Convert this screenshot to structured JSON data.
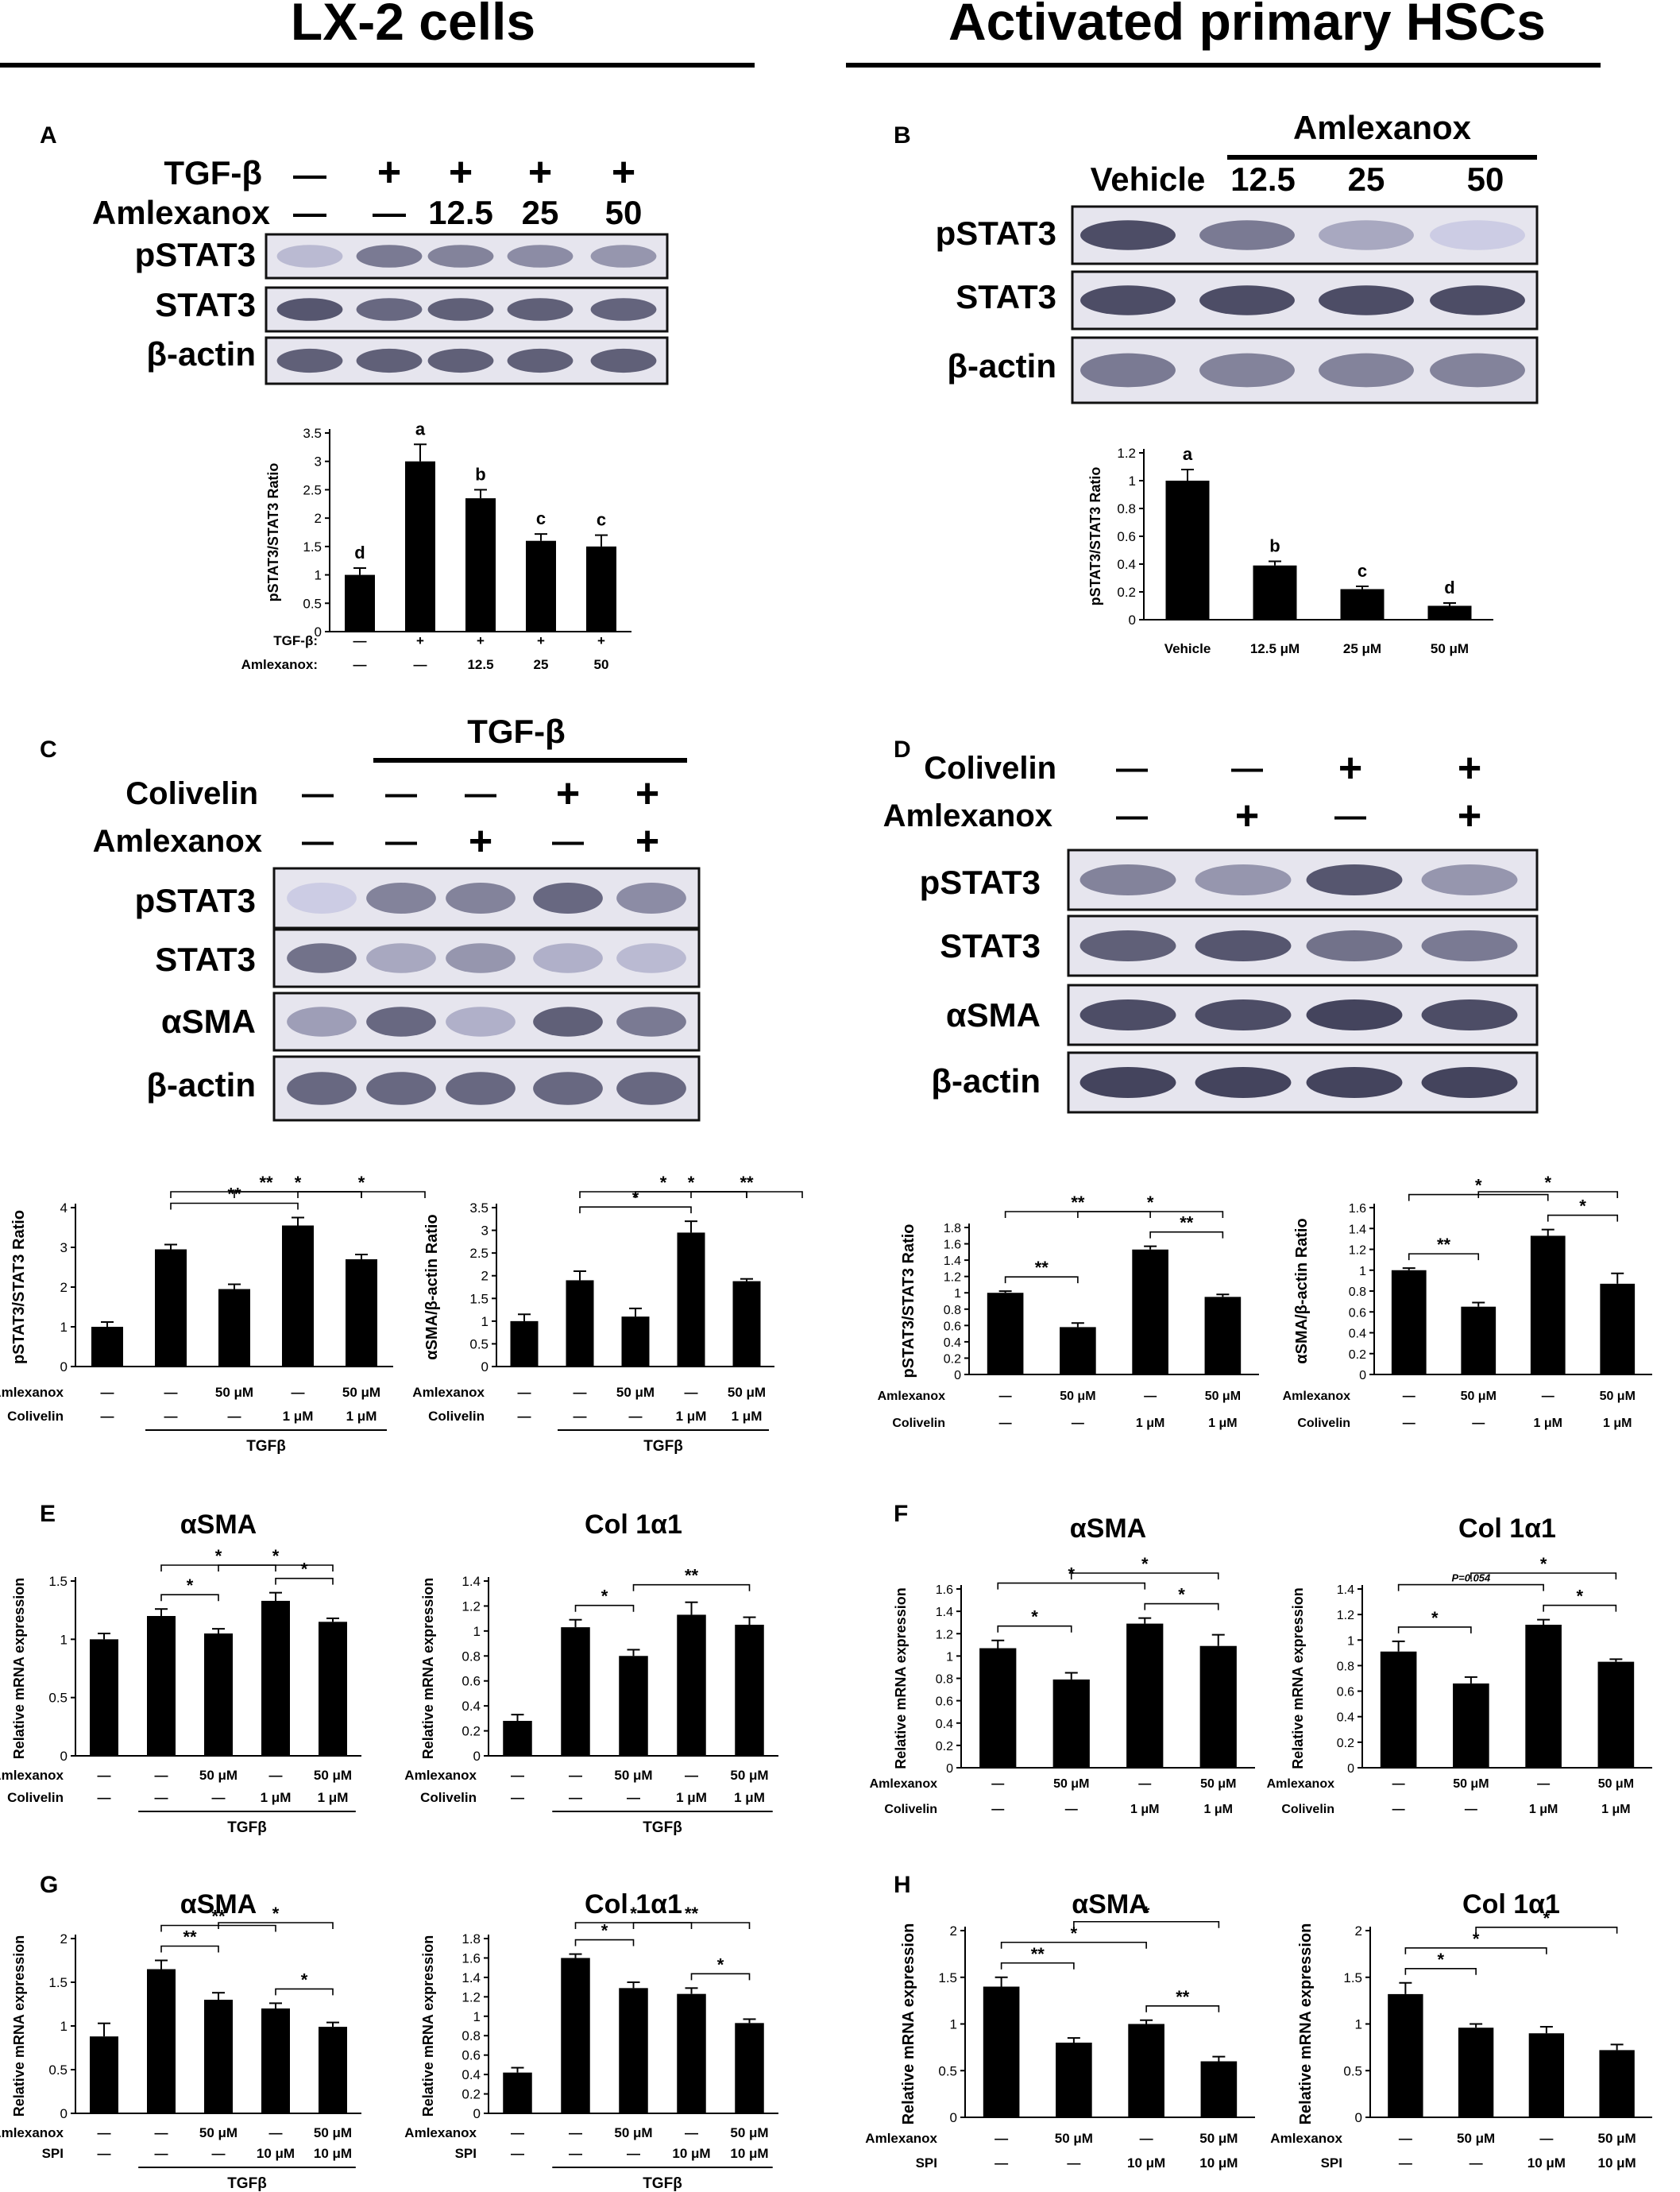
{
  "headers": {
    "left": "LX-2 cells",
    "right": "Activated primary HSCs"
  },
  "panel_labels": [
    "A",
    "B",
    "C",
    "D",
    "E",
    "F",
    "G",
    "H"
  ],
  "blot_labels": {
    "tgfb": "TGF-β",
    "amlexanox": "Amlexanox",
    "colivelin": "Colivelin",
    "pstat3": "pSTAT3",
    "stat3": "STAT3",
    "asma": "αSMA",
    "bactin": "β-actin",
    "vehicle": "Vehicle",
    "plus": "+",
    "minus": "—"
  },
  "blots": {
    "A": {
      "tgfb": [
        "—",
        "+",
        "+",
        "+",
        "+"
      ],
      "amlexanox": [
        "—",
        "—",
        "12.5",
        "25",
        "50"
      ],
      "bands": {
        "pstat3": [
          0.25,
          0.6,
          0.55,
          0.5,
          0.45
        ],
        "stat3": [
          0.8,
          0.7,
          0.75,
          0.75,
          0.72
        ],
        "bactin": [
          0.75,
          0.75,
          0.75,
          0.75,
          0.75
        ]
      }
    },
    "B": {
      "doses": [
        "12.5",
        "25",
        "50"
      ],
      "bands": {
        "pstat3": [
          0.85,
          0.6,
          0.35,
          0.15
        ],
        "stat3": [
          0.85,
          0.85,
          0.85,
          0.85
        ],
        "bactin": [
          0.6,
          0.55,
          0.55,
          0.55
        ]
      }
    },
    "C": {
      "colivelin": [
        "—",
        "—",
        "—",
        "+",
        "+"
      ],
      "amlexanox": [
        "—",
        "—",
        "+",
        "—",
        "+"
      ],
      "bands": {
        "pstat3": [
          0.15,
          0.55,
          0.55,
          0.7,
          0.5
        ],
        "stat3": [
          0.65,
          0.35,
          0.45,
          0.3,
          0.25
        ],
        "asma": [
          0.4,
          0.7,
          0.3,
          0.75,
          0.6
        ],
        "bactin": [
          0.7,
          0.7,
          0.7,
          0.7,
          0.7
        ]
      }
    },
    "D": {
      "colivelin": [
        "—",
        "—",
        "+",
        "+"
      ],
      "amlexanox": [
        "—",
        "+",
        "—",
        "+"
      ],
      "bands": {
        "pstat3": [
          0.55,
          0.45,
          0.8,
          0.45
        ],
        "stat3": [
          0.75,
          0.8,
          0.65,
          0.6
        ],
        "asma": [
          0.85,
          0.85,
          0.9,
          0.85
        ],
        "bactin": [
          0.9,
          0.9,
          0.9,
          0.9
        ]
      }
    }
  },
  "chart_data": [
    {
      "id": "A-chart",
      "type": "bar",
      "ylabel": "pSTAT3/STAT3 Ratio",
      "ylim": [
        0,
        3.5
      ],
      "yticks": [
        "0",
        "0.5",
        "1",
        "1.5",
        "2",
        "2.5",
        "3",
        "3.5"
      ],
      "values": [
        1.0,
        3.0,
        2.35,
        1.6,
        1.5
      ],
      "errors": [
        0.12,
        0.3,
        0.15,
        0.12,
        0.2
      ],
      "letters": [
        "d",
        "a",
        "b",
        "c",
        "c"
      ],
      "treat_rows": [
        {
          "label": "TGF-β:",
          "values": [
            "—",
            "+",
            "+",
            "+",
            "+"
          ]
        },
        {
          "label": "Amlexanox:",
          "values": [
            "—",
            "—",
            "12.5",
            "25",
            "50"
          ]
        }
      ]
    },
    {
      "id": "B-chart",
      "type": "bar",
      "ylabel": "pSTAT3/STAT3 Ratio",
      "ylim": [
        0,
        1.2
      ],
      "yticks": [
        "0",
        "0.2",
        "0.4",
        "0.6",
        "0.8",
        "1",
        "1.2"
      ],
      "categories": [
        "Vehicle",
        "12.5 μM",
        "25 μM",
        "50 μM"
      ],
      "values": [
        1.0,
        0.39,
        0.22,
        0.1
      ],
      "errors": [
        0.08,
        0.03,
        0.02,
        0.02
      ],
      "letters": [
        "a",
        "b",
        "c",
        "d"
      ]
    },
    {
      "id": "C1-chart",
      "type": "bar",
      "ylabel": "pSTAT3/STAT3 Ratio",
      "ylim": [
        0,
        4
      ],
      "yticks": [
        "0",
        "1",
        "2",
        "3",
        "4"
      ],
      "values": [
        1.0,
        2.95,
        1.95,
        3.55,
        2.7
      ],
      "errors": [
        0.12,
        0.12,
        0.12,
        0.2,
        0.12
      ],
      "sig": [
        [
          "1",
          "3",
          "**"
        ],
        [
          "1",
          "4",
          "**"
        ],
        [
          "2",
          "4",
          "*"
        ],
        [
          "3",
          "5",
          "*"
        ]
      ],
      "treat_rows": [
        {
          "label": "Amlexanox",
          "values": [
            "—",
            "—",
            "50 μM",
            "—",
            "50 μM"
          ]
        },
        {
          "label": "Colivelin",
          "values": [
            "—",
            "—",
            "—",
            "1 μM",
            "1 μM"
          ]
        }
      ],
      "underline": "TGFβ"
    },
    {
      "id": "C2-chart",
      "type": "bar",
      "ylabel": "αSMA/β-actin Ratio",
      "ylim": [
        0,
        3.5
      ],
      "yticks": [
        "0",
        "0.5",
        "1",
        "1.5",
        "2",
        "2.5",
        "3",
        "3.5"
      ],
      "values": [
        1.0,
        1.9,
        1.1,
        2.95,
        1.88
      ],
      "errors": [
        0.15,
        0.2,
        0.18,
        0.25,
        0.05
      ],
      "sig": [
        [
          "1",
          "3",
          "*"
        ],
        [
          "1",
          "4",
          "*"
        ],
        [
          "2",
          "4",
          "*"
        ],
        [
          "3",
          "5",
          "**"
        ]
      ],
      "treat_rows": [
        {
          "label": "Amlexanox",
          "values": [
            "—",
            "—",
            "50 μM",
            "—",
            "50 μM"
          ]
        },
        {
          "label": "Colivelin",
          "values": [
            "—",
            "—",
            "—",
            "1 μM",
            "1 μM"
          ]
        }
      ],
      "underline": "TGFβ"
    },
    {
      "id": "D1-chart",
      "type": "bar",
      "ylabel": "pSTAT3/STAT3 Ratio",
      "ylim": [
        0,
        1.8
      ],
      "yticks": [
        "0",
        "0.2",
        "0.4",
        "0.6",
        "0.8",
        "1",
        "1.2",
        "1.4",
        "1.6",
        "1.8"
      ],
      "values": [
        1.0,
        0.58,
        1.53,
        0.95
      ],
      "errors": [
        0.02,
        0.05,
        0.04,
        0.03
      ],
      "sig": [
        [
          "0",
          "1",
          "**"
        ],
        [
          "0",
          "2",
          "**"
        ],
        [
          "1",
          "3",
          "*"
        ],
        [
          "2",
          "3",
          "**"
        ]
      ],
      "treat_rows": [
        {
          "label": "Amlexanox",
          "values": [
            "—",
            "50 μM",
            "—",
            "50 μM"
          ]
        },
        {
          "label": "Colivelin",
          "values": [
            "—",
            "—",
            "1 μM",
            "1 μM"
          ]
        }
      ]
    },
    {
      "id": "D2-chart",
      "type": "bar",
      "ylabel": "αSMA/β-actin Ratio",
      "ylim": [
        0,
        1.6
      ],
      "yticks": [
        "0",
        "0.2",
        "0.4",
        "0.6",
        "0.8",
        "1",
        "1.2",
        "1.4",
        "1.6"
      ],
      "values": [
        1.0,
        0.65,
        1.33,
        0.87
      ],
      "errors": [
        0.02,
        0.04,
        0.06,
        0.1
      ],
      "sig": [
        [
          "0",
          "1",
          "**"
        ],
        [
          "0",
          "2",
          "*"
        ],
        [
          "1",
          "3",
          "*"
        ],
        [
          "2",
          "3",
          "*"
        ]
      ],
      "treat_rows": [
        {
          "label": "Amlexanox",
          "values": [
            "—",
            "50 μM",
            "—",
            "50 μM"
          ]
        },
        {
          "label": "Colivelin",
          "values": [
            "—",
            "—",
            "1 μM",
            "1 μM"
          ]
        }
      ]
    },
    {
      "id": "E1-chart",
      "type": "bar",
      "title": "αSMA",
      "ylabel": "Relative mRNA expression",
      "ylim": [
        0,
        1.5
      ],
      "yticks": [
        "0",
        "0.5",
        "1",
        "1.5"
      ],
      "values": [
        1.0,
        1.2,
        1.05,
        1.33,
        1.15
      ],
      "errors": [
        0.05,
        0.06,
        0.04,
        0.07,
        0.03
      ],
      "sig": [
        [
          "1",
          "2",
          "*"
        ],
        [
          "1",
          "3",
          "*"
        ],
        [
          "2",
          "4",
          "*"
        ],
        [
          "3",
          "4",
          "*"
        ]
      ],
      "treat_rows": [
        {
          "label": "Amlexanox",
          "values": [
            "—",
            "—",
            "50 μM",
            "—",
            "50 μM"
          ]
        },
        {
          "label": "Colivelin",
          "values": [
            "—",
            "—",
            "—",
            "1 μM",
            "1 μM"
          ]
        }
      ],
      "underline": "TGFβ"
    },
    {
      "id": "E2-chart",
      "type": "bar",
      "title": "Col 1α1",
      "ylabel": "Relative mRNA expression",
      "ylim": [
        0,
        1.4
      ],
      "yticks": [
        "0",
        "0.2",
        "0.4",
        "0.6",
        "0.8",
        "1",
        "1.2",
        "1.4"
      ],
      "values": [
        0.28,
        1.03,
        0.8,
        1.13,
        1.05
      ],
      "errors": [
        0.05,
        0.06,
        0.05,
        0.1,
        0.06
      ],
      "sig": [
        [
          "1",
          "2",
          "*"
        ],
        [
          "2",
          "4",
          "**"
        ]
      ],
      "treat_rows": [
        {
          "label": "Amlexanox",
          "values": [
            "—",
            "—",
            "50 μM",
            "—",
            "50 μM"
          ]
        },
        {
          "label": "Colivelin",
          "values": [
            "—",
            "—",
            "—",
            "1 μM",
            "1 μM"
          ]
        }
      ],
      "underline": "TGFβ"
    },
    {
      "id": "F1-chart",
      "type": "bar",
      "title": "αSMA",
      "ylabel": "Relative mRNA expression",
      "ylim": [
        0,
        1.6
      ],
      "yticks": [
        "0",
        "0.2",
        "0.4",
        "0.6",
        "0.8",
        "1",
        "1.2",
        "1.4",
        "1.6"
      ],
      "values": [
        1.07,
        0.79,
        1.29,
        1.09
      ],
      "errors": [
        0.07,
        0.06,
        0.05,
        0.1
      ],
      "sig": [
        [
          "0",
          "1",
          "*"
        ],
        [
          "0",
          "2",
          "*"
        ],
        [
          "1",
          "3",
          "*"
        ],
        [
          "2",
          "3",
          "*"
        ]
      ],
      "treat_rows": [
        {
          "label": "Amlexanox",
          "values": [
            "—",
            "50 μM",
            "—",
            "50 μM"
          ]
        },
        {
          "label": "Colivelin",
          "values": [
            "—",
            "—",
            "1 μM",
            "1 μM"
          ]
        }
      ]
    },
    {
      "id": "F2-chart",
      "type": "bar",
      "title": "Col 1α1",
      "ylabel": "Relative mRNA expression",
      "ylim": [
        0,
        1.4
      ],
      "yticks": [
        "0",
        "0.2",
        "0.4",
        "0.6",
        "0.8",
        "1",
        "1.2",
        "1.4"
      ],
      "values": [
        0.91,
        0.66,
        1.12,
        0.83
      ],
      "errors": [
        0.08,
        0.05,
        0.04,
        0.02
      ],
      "sig": [
        [
          "0",
          "1",
          "*"
        ],
        [
          "0",
          "2",
          "P=0.054"
        ],
        [
          "1",
          "3",
          "*"
        ],
        [
          "2",
          "3",
          "*"
        ]
      ],
      "treat_rows": [
        {
          "label": "Amlexanox",
          "values": [
            "—",
            "50 μM",
            "—",
            "50 μM"
          ]
        },
        {
          "label": "Colivelin",
          "values": [
            "—",
            "—",
            "1 μM",
            "1 μM"
          ]
        }
      ]
    },
    {
      "id": "G1-chart",
      "type": "bar",
      "title": "αSMA",
      "ylabel": "Relative mRNA expression",
      "ylim": [
        0,
        2
      ],
      "yticks": [
        "0",
        "0.5",
        "1",
        "1.5",
        "2"
      ],
      "values": [
        0.88,
        1.65,
        1.3,
        1.2,
        0.99
      ],
      "errors": [
        0.15,
        0.1,
        0.08,
        0.06,
        0.05
      ],
      "sig": [
        [
          "1",
          "2",
          "**"
        ],
        [
          "1",
          "3",
          "**"
        ],
        [
          "2",
          "4",
          "*"
        ],
        [
          "3",
          "4",
          "*"
        ]
      ],
      "treat_rows": [
        {
          "label": "Amlexanox",
          "values": [
            "—",
            "—",
            "50 μM",
            "—",
            "50 μM"
          ]
        },
        {
          "label": "SPI",
          "values": [
            "—",
            "—",
            "—",
            "10 μM",
            "10 μM"
          ]
        }
      ],
      "underline": "TGFβ"
    },
    {
      "id": "G2-chart",
      "type": "bar",
      "title": "Col 1α1",
      "ylabel": "Relative mRNA expression",
      "ylim": [
        0,
        1.8
      ],
      "yticks": [
        "0",
        "0.2",
        "0.4",
        "0.6",
        "0.8",
        "1",
        "1.2",
        "1.4",
        "1.6",
        "1.8"
      ],
      "values": [
        0.42,
        1.6,
        1.29,
        1.23,
        0.93
      ],
      "errors": [
        0.05,
        0.04,
        0.06,
        0.06,
        0.04
      ],
      "sig": [
        [
          "1",
          "2",
          "*"
        ],
        [
          "1",
          "3",
          "*"
        ],
        [
          "2",
          "4",
          "**"
        ],
        [
          "3",
          "4",
          "*"
        ]
      ],
      "treat_rows": [
        {
          "label": "Amlexanox",
          "values": [
            "—",
            "—",
            "50 μM",
            "—",
            "50 μM"
          ]
        },
        {
          "label": "SPI",
          "values": [
            "—",
            "—",
            "—",
            "10 μM",
            "10 μM"
          ]
        }
      ],
      "underline": "TGFβ"
    },
    {
      "id": "H1-chart",
      "type": "bar",
      "title": "αSMA",
      "ylabel": "Relative mRNA expression",
      "ylim": [
        0,
        2
      ],
      "yticks": [
        "0",
        "0.5",
        "1",
        "1.5",
        "2"
      ],
      "values": [
        1.4,
        0.8,
        1.0,
        0.6
      ],
      "errors": [
        0.1,
        0.05,
        0.04,
        0.05
      ],
      "sig": [
        [
          "0",
          "1",
          "**"
        ],
        [
          "0",
          "2",
          "*"
        ],
        [
          "1",
          "3",
          "*"
        ],
        [
          "2",
          "3",
          "**"
        ]
      ],
      "treat_rows": [
        {
          "label": "Amlexanox",
          "values": [
            "—",
            "50 μM",
            "—",
            "50 μM"
          ]
        },
        {
          "label": "SPI",
          "values": [
            "—",
            "—",
            "10 μM",
            "10 μM"
          ]
        }
      ]
    },
    {
      "id": "H2-chart",
      "type": "bar",
      "title": "Col 1α1",
      "ylabel": "Relative mRNA expression",
      "ylim": [
        0,
        2
      ],
      "yticks": [
        "0",
        "0.5",
        "1",
        "1.5",
        "2"
      ],
      "values": [
        1.32,
        0.96,
        0.9,
        0.72
      ],
      "errors": [
        0.12,
        0.04,
        0.07,
        0.06
      ],
      "sig": [
        [
          "0",
          "1",
          "*"
        ],
        [
          "0",
          "2",
          "*"
        ],
        [
          "1",
          "3",
          "*"
        ]
      ],
      "treat_rows": [
        {
          "label": "Amlexanox",
          "values": [
            "—",
            "50 μM",
            "—",
            "50 μM"
          ]
        },
        {
          "label": "SPI",
          "values": [
            "—",
            "—",
            "10 μM",
            "10 μM"
          ]
        }
      ]
    }
  ]
}
